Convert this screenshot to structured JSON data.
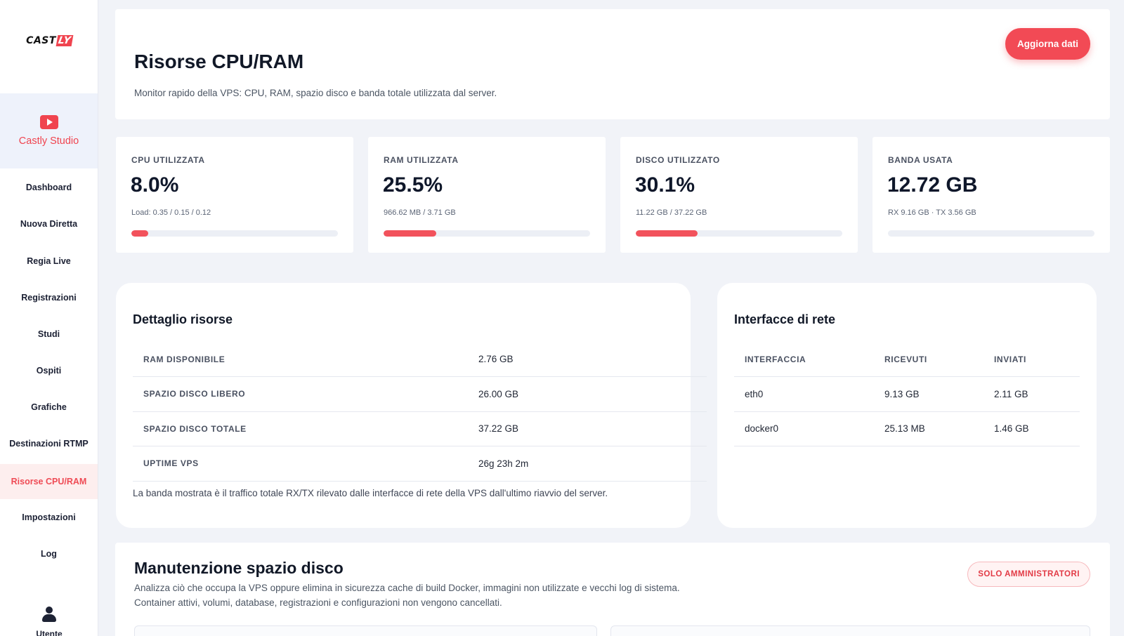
{
  "sidebar": {
    "logo": {
      "text_main": "CAST",
      "text_accent": "LY"
    },
    "brand": {
      "name": "Castly Studio",
      "icon": "play-icon"
    },
    "nav": [
      {
        "label": "Dashboard"
      },
      {
        "label": "Nuova Diretta"
      },
      {
        "label": "Regia Live"
      },
      {
        "label": "Registrazioni"
      },
      {
        "label": "Studi"
      },
      {
        "label": "Ospiti"
      },
      {
        "label": "Grafiche"
      },
      {
        "label": "Destinazioni RTMP"
      },
      {
        "label": "Risorse CPU/RAM",
        "active": true
      },
      {
        "label": "Impostazioni"
      },
      {
        "label": "Log"
      }
    ],
    "user": {
      "label": "Utente",
      "icon": "user-icon"
    }
  },
  "header": {
    "title": "Risorse CPU/RAM",
    "subtitle": "Monitor rapido della VPS: CPU, RAM, spazio disco e banda totale utilizzata dal server.",
    "refresh_button": "Aggiorna dati"
  },
  "stats": [
    {
      "label": "CPU UTILIZZATA",
      "value": "8.0%",
      "sub": "Load: 0.35 / 0.15 / 0.12",
      "progress": 0.08
    },
    {
      "label": "RAM UTILIZZATA",
      "value": "25.5%",
      "sub": "966.62 MB / 3.71 GB",
      "progress": 0.255
    },
    {
      "label": "DISCO UTILIZZATO",
      "value": "30.1%",
      "sub": "11.22 GB / 37.22 GB",
      "progress": 0.301
    },
    {
      "label": "BANDA USATA",
      "value": "12.72 GB",
      "sub": "RX 9.16 GB · TX 3.56 GB",
      "progress": 0
    }
  ],
  "resources": {
    "title": "Dettaglio risorse",
    "rows": [
      {
        "key": "RAM DISPONIBILE",
        "value": "2.76 GB"
      },
      {
        "key": "SPAZIO DISCO LIBERO",
        "value": "26.00 GB"
      },
      {
        "key": "SPAZIO DISCO TOTALE",
        "value": "37.22 GB"
      },
      {
        "key": "UPTIME VPS",
        "value": "26g 23h 2m"
      }
    ],
    "note": "La banda mostrata è il traffico totale RX/TX rilevato dalle interfacce di rete della VPS dall'ultimo riavvio del server."
  },
  "network": {
    "title": "Interfacce di rete",
    "columns": [
      "INTERFACCIA",
      "RICEVUTI",
      "INVIATI"
    ],
    "rows": [
      [
        "eth0",
        "9.13 GB",
        "2.11 GB"
      ],
      [
        "docker0",
        "25.13 MB",
        "1.46 GB"
      ]
    ]
  },
  "maintenance": {
    "title": "Manutenzione spazio disco",
    "description": "Analizza ciò che occupa la VPS oppure elimina in sicurezza cache di build Docker, immagini non utilizzate e vecchi log di sistema. Container attivi, volumi, database, registrazioni e configurazioni non vengono cancellati.",
    "badge": "SOLO AMMINISTRATORI"
  }
}
